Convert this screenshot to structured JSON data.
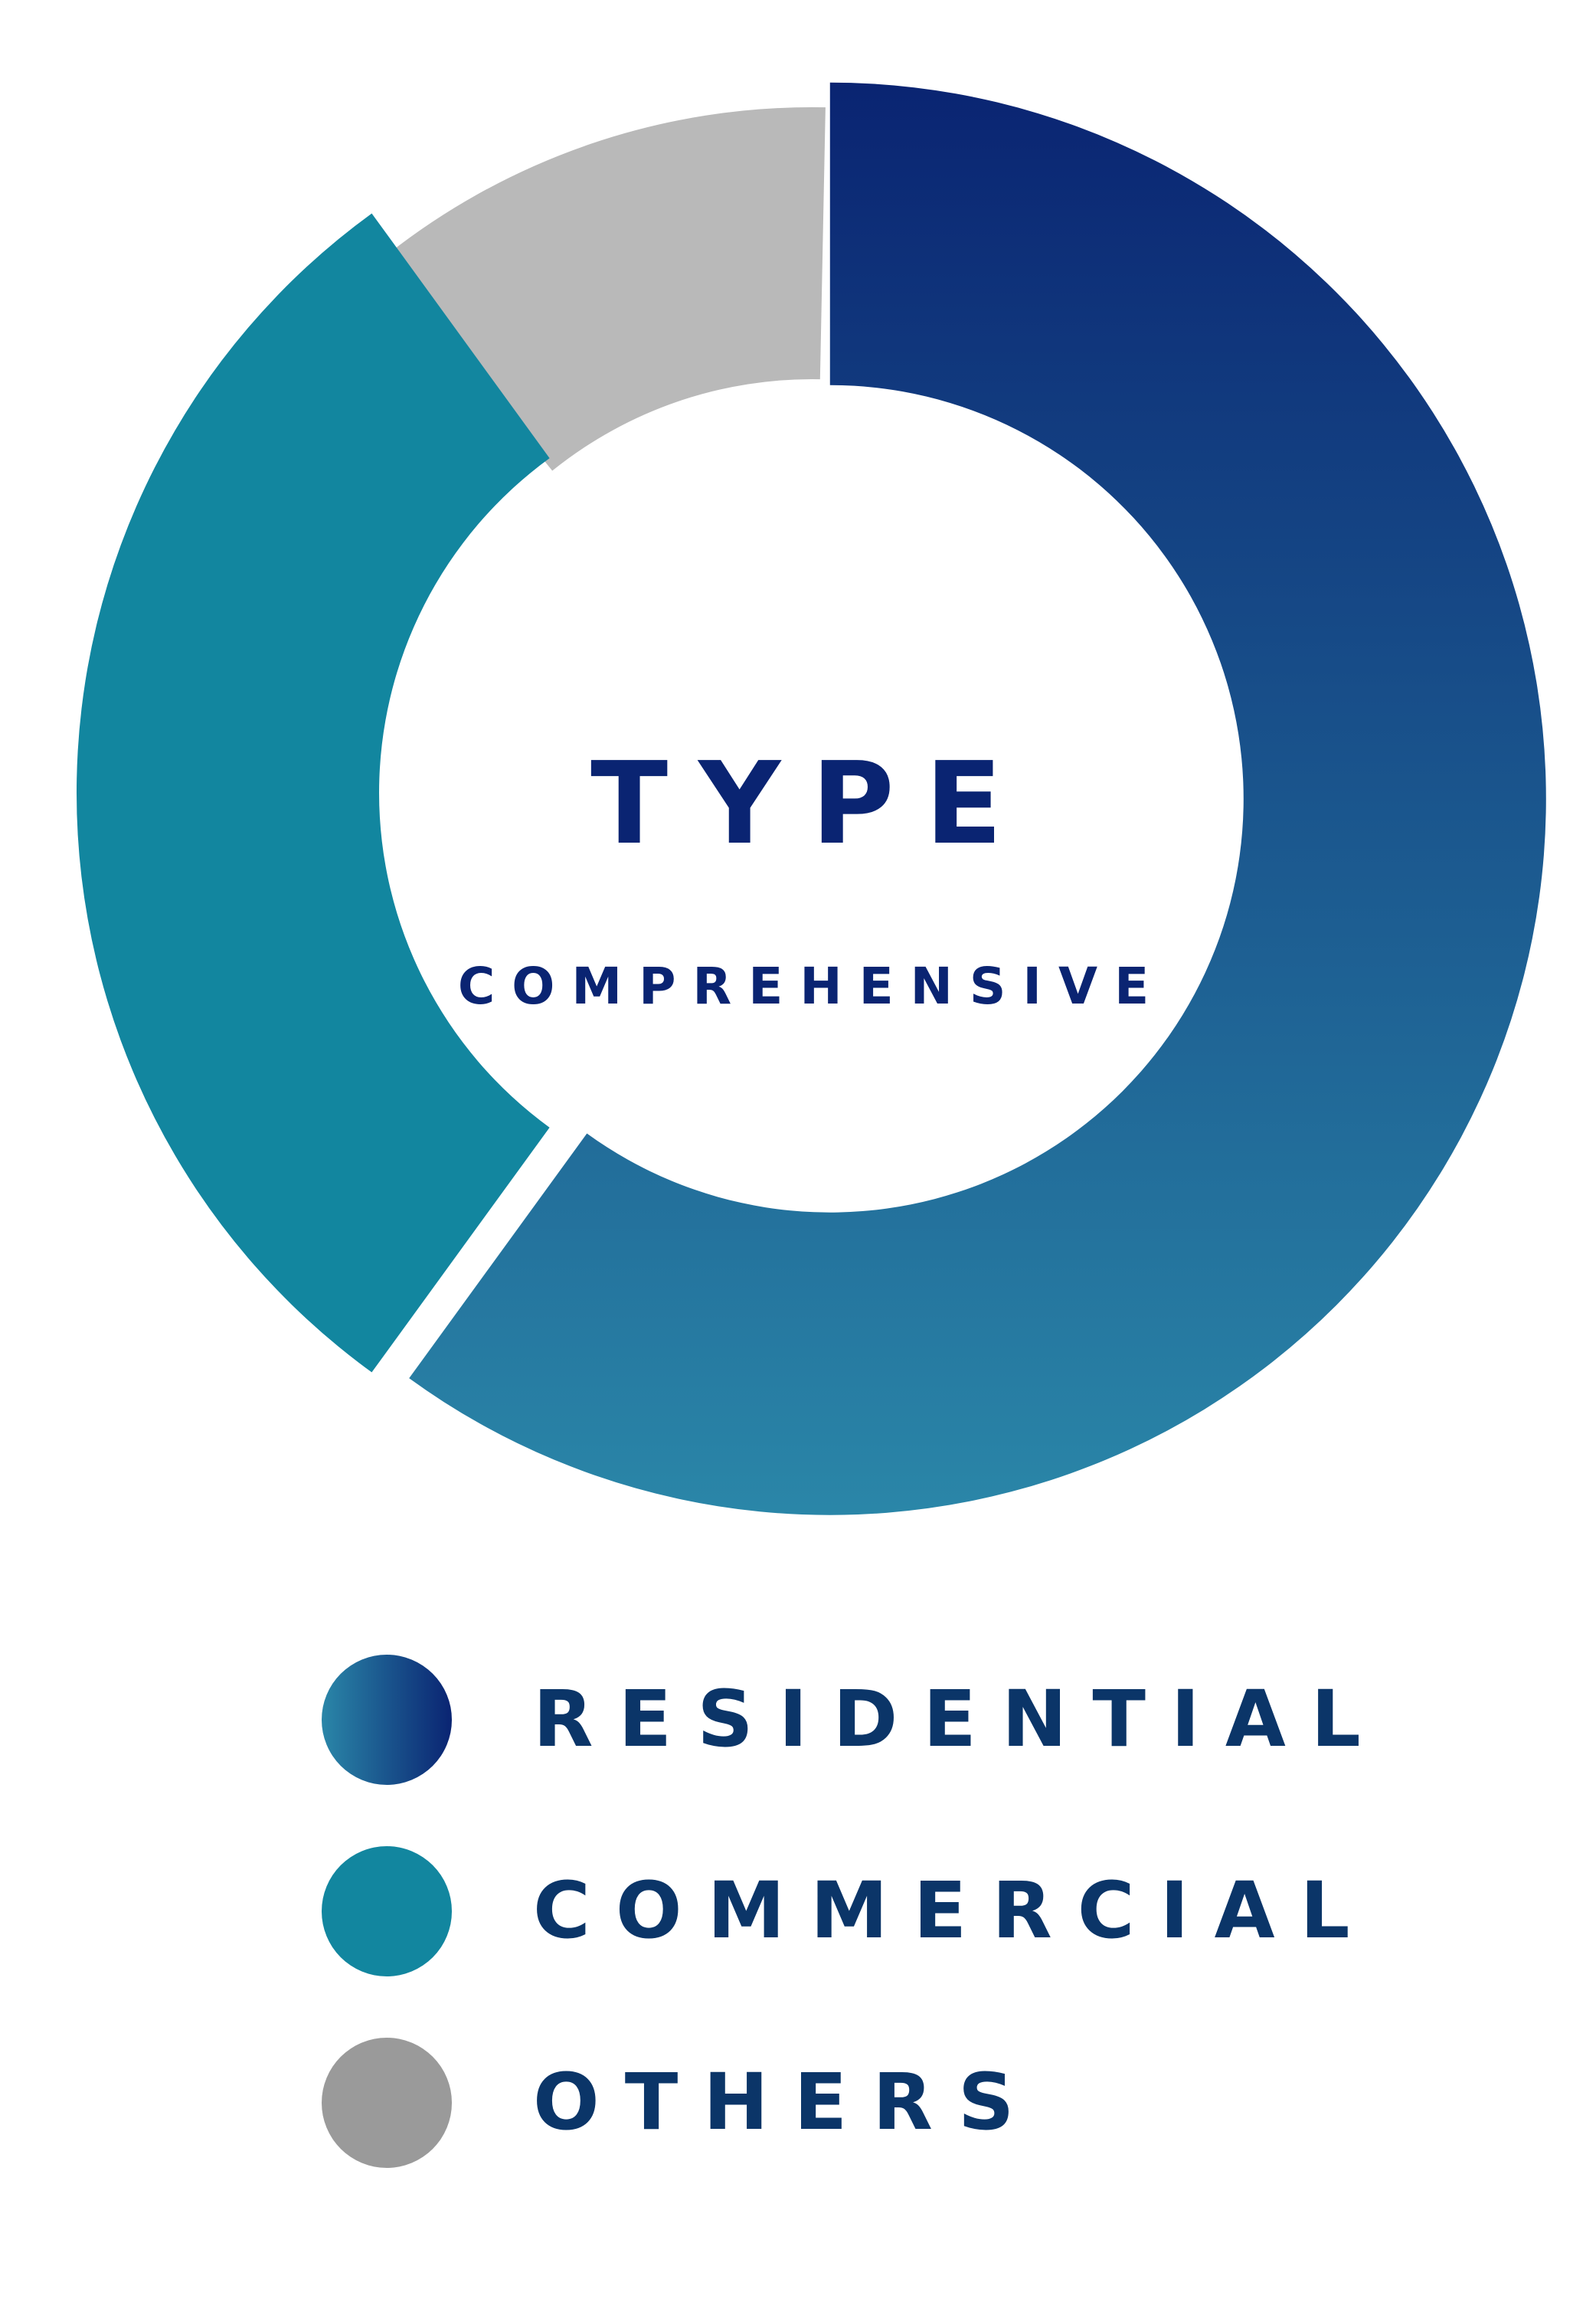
{
  "chart_data": {
    "type": "pie",
    "variant": "donut",
    "center_title": "TYPE",
    "center_subtitle": "COMPREHENSIVE",
    "legend_placement": "bottom",
    "slices": [
      {
        "name": "RESIDENTIAL",
        "value": 60,
        "color_start": "#2a86a8",
        "color_end": "#0a2472",
        "exploded": true
      },
      {
        "name": "COMMERCIAL",
        "value": 30,
        "color": "#12869f",
        "exploded": true
      },
      {
        "name": "OTHERS",
        "value": 10,
        "color": "#b9b9b9",
        "exploded": false
      }
    ]
  },
  "legend": {
    "items": [
      {
        "label": "RESIDENTIAL",
        "swatch": "gradient"
      },
      {
        "label": "COMMERCIAL",
        "swatch": "#12869f"
      },
      {
        "label": "OTHERS",
        "swatch": "#9a9a9a"
      }
    ]
  },
  "colors": {
    "title_text": "#0a2472",
    "legend_text": "#0b3568"
  }
}
